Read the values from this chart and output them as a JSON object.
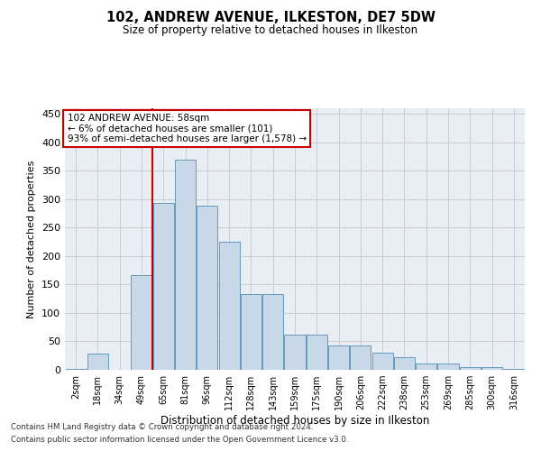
{
  "title": "102, ANDREW AVENUE, ILKESTON, DE7 5DW",
  "subtitle": "Size of property relative to detached houses in Ilkeston",
  "xlabel": "Distribution of detached houses by size in Ilkeston",
  "ylabel": "Number of detached properties",
  "bar_labels": [
    "2sqm",
    "18sqm",
    "34sqm",
    "49sqm",
    "65sqm",
    "81sqm",
    "96sqm",
    "112sqm",
    "128sqm",
    "143sqm",
    "159sqm",
    "175sqm",
    "190sqm",
    "206sqm",
    "222sqm",
    "238sqm",
    "253sqm",
    "269sqm",
    "285sqm",
    "300sqm",
    "316sqm"
  ],
  "bar_values": [
    1,
    28,
    0,
    167,
    293,
    370,
    288,
    225,
    133,
    133,
    62,
    62,
    43,
    43,
    30,
    22,
    11,
    11,
    5,
    5,
    2
  ],
  "bar_color": "#c8d8e8",
  "bar_edge_color": "#6699bb",
  "vline_x": 3.5,
  "vline_color": "#cc0000",
  "annotation_text": "102 ANDREW AVENUE: 58sqm\n← 6% of detached houses are smaller (101)\n93% of semi-detached houses are larger (1,578) →",
  "annotation_box_color": "#ffffff",
  "annotation_box_edge": "#cc0000",
  "ylim": [
    0,
    460
  ],
  "yticks": [
    0,
    50,
    100,
    150,
    200,
    250,
    300,
    350,
    400,
    450
  ],
  "grid_color": "#cccccc",
  "background_color": "#e8eef4",
  "footer_line1": "Contains HM Land Registry data © Crown copyright and database right 2024.",
  "footer_line2": "Contains public sector information licensed under the Open Government Licence v3.0."
}
